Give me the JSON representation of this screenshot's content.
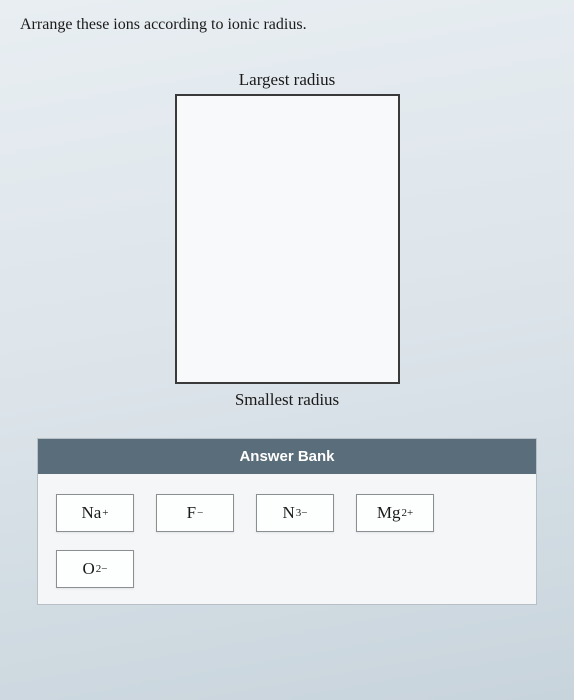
{
  "prompt": "Arrange these ions according to ionic radius.",
  "ranking": {
    "top_label": "Largest radius",
    "bottom_label": "Smallest radius"
  },
  "answer_bank": {
    "header": "Answer Bank",
    "ions": [
      {
        "base": "Na",
        "charge": "+"
      },
      {
        "base": "F",
        "charge": "−"
      },
      {
        "base": "N",
        "charge": "3−"
      },
      {
        "base": "Mg",
        "charge": "2+"
      },
      {
        "base": "O",
        "charge": "2−"
      }
    ]
  },
  "colors": {
    "header_bg": "#5a6d7a",
    "border": "#3a3a3a",
    "tile_bg": "#fdfefe",
    "tile_border": "#8a8f93",
    "page_bg_top": "#e8eef2",
    "page_bg_bottom": "#c8d4dc"
  }
}
